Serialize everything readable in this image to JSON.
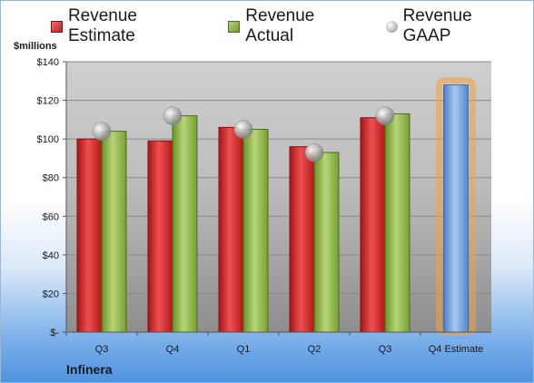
{
  "company": "Infinera",
  "chart_data": {
    "type": "bar",
    "unit_label": "$millions",
    "categories": [
      "Q3",
      "Q4",
      "Q1",
      "Q2",
      "Q3",
      "Q4 Estimate"
    ],
    "series": [
      {
        "name": "Revenue Estimate",
        "color": "#cc2222",
        "values": [
          100,
          99,
          106,
          96,
          111,
          null
        ]
      },
      {
        "name": "Revenue Actual",
        "color": "#8ab040",
        "values": [
          104,
          112,
          105,
          93,
          113,
          null
        ]
      },
      {
        "name": "Revenue GAAP",
        "color": "#bbbbbb",
        "values": [
          104,
          112,
          105,
          93,
          112,
          null
        ]
      }
    ],
    "forecast": {
      "category": "Q4 Estimate",
      "value": 128,
      "color": "#6f9ed8",
      "highlight": "#f5a040"
    },
    "yticks": [
      {
        "value": 0,
        "label": "$-"
      },
      {
        "value": 20,
        "label": "$20"
      },
      {
        "value": 40,
        "label": "$40"
      },
      {
        "value": 60,
        "label": "$60"
      },
      {
        "value": 80,
        "label": "$80"
      },
      {
        "value": 100,
        "label": "$100"
      },
      {
        "value": 120,
        "label": "$120"
      },
      {
        "value": 140,
        "label": "$140"
      }
    ],
    "ylim": [
      0,
      140
    ],
    "grid": true,
    "legend_position": "top"
  }
}
